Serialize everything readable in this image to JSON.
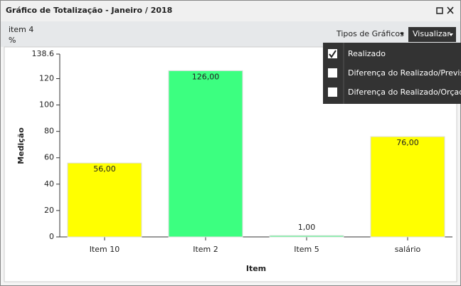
{
  "window": {
    "title": "Gráfico de Totalização - Janeiro / 2018"
  },
  "header": {
    "item": "item 4",
    "unit": "%"
  },
  "toolbar": {
    "chart_types": "Tipos de Gráficos",
    "view": "Visualizar"
  },
  "menu": {
    "items": [
      {
        "label": "Realizado",
        "checked": true
      },
      {
        "label": "Diferença do Realizado/Previsto",
        "checked": false
      },
      {
        "label": "Diferença do Realizado/Orçado",
        "checked": false
      }
    ]
  },
  "chart_data": {
    "type": "bar",
    "y_label": "Medição",
    "x_label": "Item",
    "categories": [
      "Item 10",
      "Item 2",
      "Item 5",
      "salário"
    ],
    "values": [
      56,
      126,
      1,
      76
    ],
    "value_labels": [
      "56,00",
      "126,00",
      "1,00",
      "76,00"
    ],
    "colors": [
      "#ffff00",
      "#3cff80",
      "#3cff80",
      "#ffff00"
    ],
    "ylim": [
      0,
      138.6
    ],
    "yticks": [
      0,
      20,
      40,
      60,
      80,
      100,
      120,
      138.6
    ]
  }
}
